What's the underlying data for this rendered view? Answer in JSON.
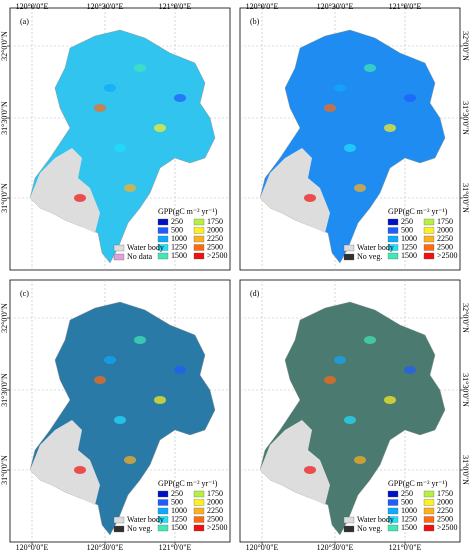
{
  "axes": {
    "lon": [
      "120°0'0\"E",
      "120°30'0\"E",
      "121°0'0\"E"
    ],
    "lat": [
      "32°0'0\"N",
      "31°30'0\"N",
      "31°0'0\"N"
    ]
  },
  "panels": [
    {
      "label": "(a)",
      "color": "#30c4ee",
      "legend_title": "GPP(gC m⁻² yr⁻¹)",
      "legend": [
        {
          "label": "250",
          "color": "#0010c8"
        },
        {
          "label": "500",
          "color": "#1e5cff"
        },
        {
          "label": "1000",
          "color": "#10a8ff"
        },
        {
          "label": "1250",
          "color": "#20e0ff"
        },
        {
          "label": "1500",
          "color": "#40e8b8"
        },
        {
          "label": "1750",
          "color": "#b8f040"
        },
        {
          "label": "2000",
          "color": "#fff020"
        },
        {
          "label": "2250",
          "color": "#ffb020"
        },
        {
          "label": "2500",
          "color": "#ff6a10"
        },
        {
          "label": ">2500",
          "color": "#f01010"
        }
      ],
      "extra": [
        {
          "label": "Water body",
          "color": "#dddddd"
        },
        {
          "label": "No data",
          "color": "#e0a0d8"
        }
      ]
    },
    {
      "label": "(b)",
      "color": "#1e8cf0",
      "legend_title": "GPP(gC m⁻² yr⁻¹)",
      "legend": [
        {
          "label": "250",
          "color": "#0010c8"
        },
        {
          "label": "500",
          "color": "#1e5cff"
        },
        {
          "label": "1000",
          "color": "#10a8ff"
        },
        {
          "label": "1250",
          "color": "#20e0ff"
        },
        {
          "label": "1500",
          "color": "#40e8b8"
        },
        {
          "label": "1750",
          "color": "#b8f040"
        },
        {
          "label": "2000",
          "color": "#fff020"
        },
        {
          "label": "2250",
          "color": "#ffb020"
        },
        {
          "label": "2500",
          "color": "#ff6a10"
        },
        {
          "label": ">2500",
          "color": "#f01010"
        }
      ],
      "extra": [
        {
          "label": "Water body",
          "color": "#dddddd"
        },
        {
          "label": "No veg.",
          "color": "#303030"
        }
      ]
    },
    {
      "label": "(c)",
      "color": "#2a7aa8",
      "legend_title": "GPP(gC m⁻² yr⁻¹)",
      "legend": [
        {
          "label": "250",
          "color": "#0010c8"
        },
        {
          "label": "500",
          "color": "#1e5cff"
        },
        {
          "label": "1000",
          "color": "#10a8ff"
        },
        {
          "label": "1250",
          "color": "#20e0ff"
        },
        {
          "label": "1500",
          "color": "#40e8b8"
        },
        {
          "label": "1750",
          "color": "#b8f040"
        },
        {
          "label": "2000",
          "color": "#fff020"
        },
        {
          "label": "2250",
          "color": "#ffb020"
        },
        {
          "label": "2500",
          "color": "#ff6a10"
        },
        {
          "label": ">2500",
          "color": "#f01010"
        }
      ],
      "extra": [
        {
          "label": "Water body",
          "color": "#dddddd"
        },
        {
          "label": "No veg.",
          "color": "#303030"
        }
      ]
    },
    {
      "label": "(d)",
      "color": "#4a7a70",
      "legend_title": "GPP(gC m⁻² yr⁻¹)",
      "legend": [
        {
          "label": "250",
          "color": "#0010c8"
        },
        {
          "label": "500",
          "color": "#1e5cff"
        },
        {
          "label": "1000",
          "color": "#10a8ff"
        },
        {
          "label": "1250",
          "color": "#20e0ff"
        },
        {
          "label": "1500",
          "color": "#40e8b8"
        },
        {
          "label": "1750",
          "color": "#b8f040"
        },
        {
          "label": "2000",
          "color": "#fff020"
        },
        {
          "label": "2250",
          "color": "#ffb020"
        },
        {
          "label": "2500",
          "color": "#ff6a10"
        },
        {
          "label": ">2500",
          "color": "#f01010"
        }
      ],
      "extra": [
        {
          "label": "Water body",
          "color": "#dddddd"
        },
        {
          "label": "No veg.",
          "color": "#303030"
        }
      ]
    }
  ]
}
